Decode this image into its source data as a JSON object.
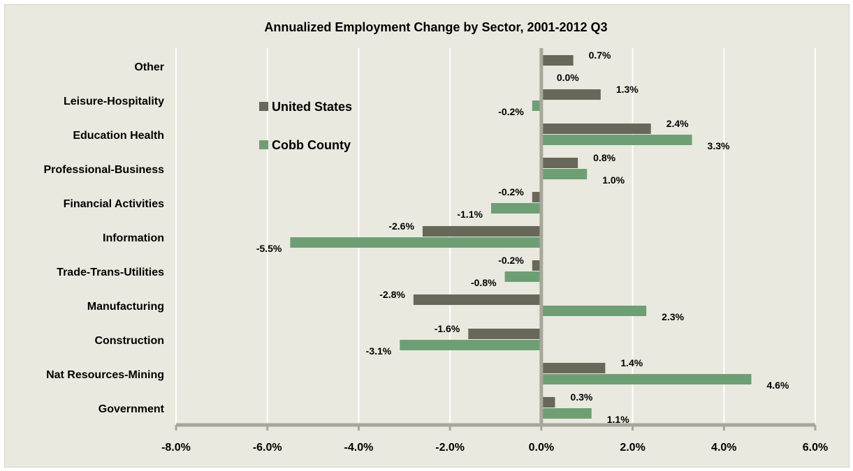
{
  "chart_data": {
    "type": "bar",
    "orientation": "horizontal",
    "title": "Annualized Employment Change by Sector, 2001-2012 Q3",
    "categories": [
      "Other",
      "Leisure-Hospitality",
      "Education Health",
      "Professional-Business",
      "Financial Activities",
      "Information",
      "Trade-Trans-Utilities",
      "Manufacturing",
      "Construction",
      "Nat Resources-Mining",
      "Government"
    ],
    "series": [
      {
        "name": "United States",
        "color": "#67675a",
        "values": [
          0.7,
          1.3,
          2.4,
          0.8,
          -0.2,
          -2.6,
          -0.2,
          -2.8,
          -1.6,
          1.4,
          0.3
        ],
        "labels": [
          "0.7%",
          "1.3%",
          "2.4%",
          "0.8%",
          "-0.2%",
          "-2.6%",
          "-0.2%",
          "-2.8%",
          "-1.6%",
          "1.4%",
          "0.3%"
        ]
      },
      {
        "name": "Cobb County",
        "color": "#6e9f74",
        "values": [
          0.0,
          -0.2,
          3.3,
          1.0,
          -1.1,
          -5.5,
          -0.8,
          2.3,
          -3.1,
          4.6,
          1.1
        ],
        "labels": [
          "0.0%",
          "-0.2%",
          "3.3%",
          "1.0%",
          "-1.1%",
          "-5.5%",
          "-0.8%",
          "2.3%",
          "-3.1%",
          "4.6%",
          "1.1%"
        ]
      }
    ],
    "xlim": [
      -8.0,
      6.0
    ],
    "ticks": [
      -8,
      -6,
      -4,
      -2,
      0,
      2,
      4,
      6
    ],
    "tick_labels": [
      "-8.0%",
      "-6.0%",
      "-4.0%",
      "-2.0%",
      "0.0%",
      "2.0%",
      "4.0%",
      "6.0%"
    ],
    "xlabel": "",
    "ylabel": "",
    "grid": true,
    "legend_position": "upper-left inside plot"
  }
}
